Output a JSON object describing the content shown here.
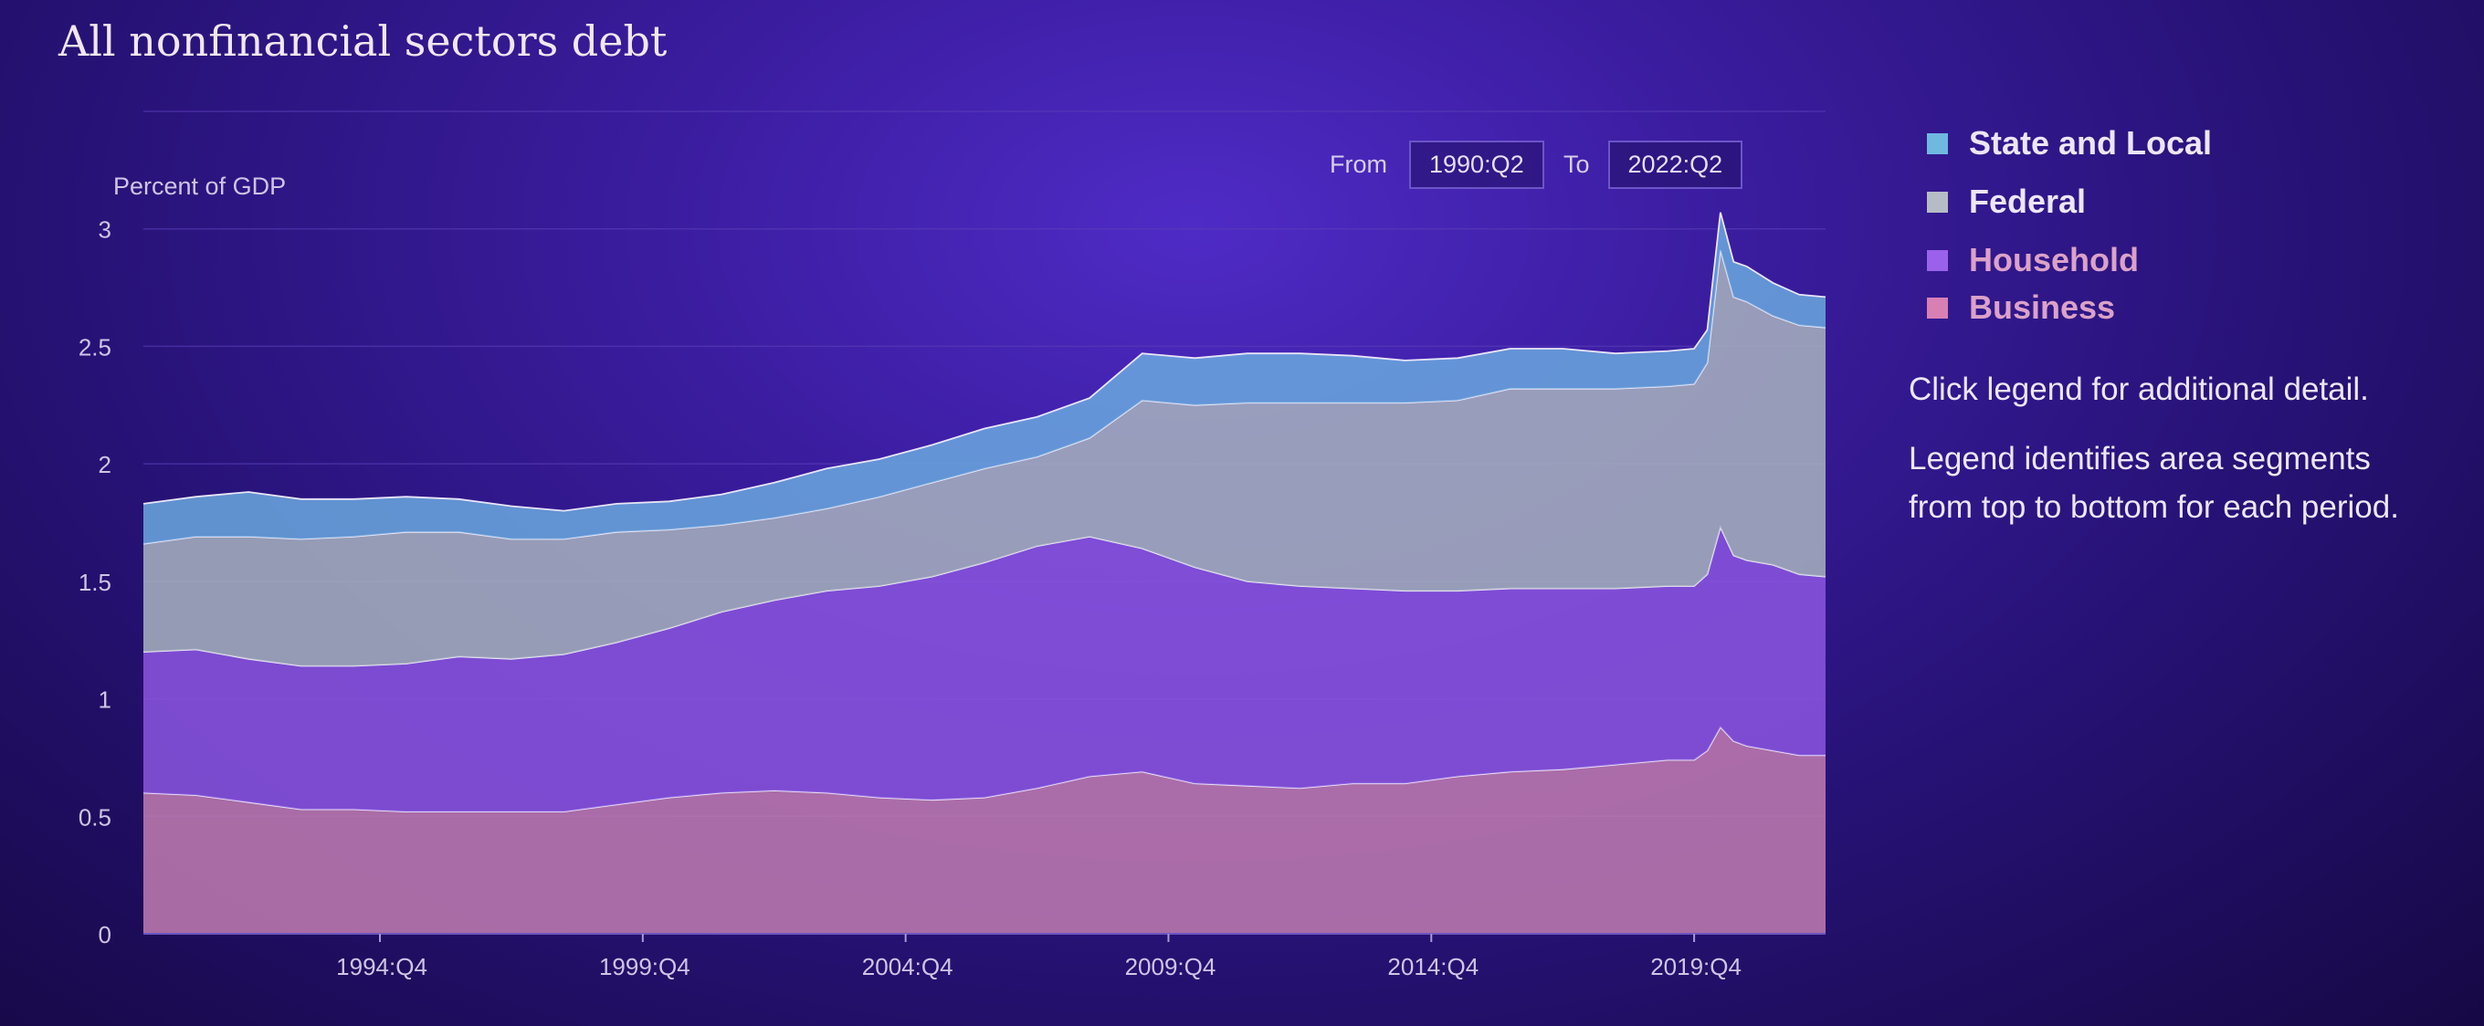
{
  "title": "All nonfinancial sectors debt",
  "range": {
    "from_label": "From",
    "from_value": "1990:Q2",
    "to_label": "To",
    "to_value": "2022:Q2"
  },
  "legend": [
    {
      "label": "State and Local",
      "color": "#6fb8e0",
      "text_color": "#ece6f6"
    },
    {
      "label": "Federal",
      "color": "#b6bcc6",
      "text_color": "#ece6f6"
    },
    {
      "label": "Household",
      "color": "#9a62ea",
      "text_color": "#dba2c8"
    },
    {
      "label": "Business",
      "color": "#d880b4",
      "text_color": "#dba2c8"
    }
  ],
  "notes": {
    "click": "Click legend for additional detail.",
    "identifies_line1": "Legend identifies area segments",
    "identifies_line2": "from top to bottom for each period."
  },
  "chart_data": {
    "type": "area",
    "stacked": true,
    "ylabel": "Percent of GDP",
    "ylim": [
      0,
      3.5
    ],
    "yticks": [
      0,
      0.5,
      1,
      1.5,
      2,
      2.5,
      3
    ],
    "ytick_labels": [
      "0",
      "0.5",
      "1",
      "1.5",
      "2",
      "2.5",
      "3"
    ],
    "xlim": [
      1990.25,
      2022.25
    ],
    "xticks": [
      "1994:Q4",
      "1999:Q4",
      "2004:Q4",
      "2009:Q4",
      "2014:Q4",
      "2019:Q4"
    ],
    "grid": true,
    "x": [
      "1990:Q2",
      "1991:Q2",
      "1992:Q2",
      "1993:Q2",
      "1994:Q2",
      "1995:Q2",
      "1996:Q2",
      "1997:Q2",
      "1998:Q2",
      "1999:Q2",
      "2000:Q2",
      "2001:Q2",
      "2002:Q2",
      "2003:Q2",
      "2004:Q2",
      "2005:Q2",
      "2006:Q2",
      "2007:Q2",
      "2008:Q2",
      "2009:Q2",
      "2010:Q2",
      "2011:Q2",
      "2012:Q2",
      "2013:Q2",
      "2014:Q2",
      "2015:Q2",
      "2016:Q2",
      "2017:Q2",
      "2018:Q2",
      "2019:Q2",
      "2019:Q4",
      "2020:Q1",
      "2020:Q2",
      "2020:Q3",
      "2020:Q4",
      "2021:Q2",
      "2021:Q4",
      "2022:Q2"
    ],
    "series": [
      {
        "name": "Business",
        "color": "#c07bb0",
        "values": [
          0.6,
          0.59,
          0.56,
          0.53,
          0.53,
          0.52,
          0.52,
          0.52,
          0.52,
          0.55,
          0.58,
          0.6,
          0.61,
          0.6,
          0.58,
          0.57,
          0.58,
          0.62,
          0.67,
          0.69,
          0.64,
          0.63,
          0.62,
          0.64,
          0.64,
          0.67,
          0.69,
          0.7,
          0.72,
          0.74,
          0.74,
          0.78,
          0.88,
          0.82,
          0.8,
          0.78,
          0.76,
          0.76
        ]
      },
      {
        "name": "Household",
        "color": "#8a55df",
        "values": [
          0.6,
          0.62,
          0.61,
          0.61,
          0.61,
          0.63,
          0.66,
          0.65,
          0.67,
          0.69,
          0.72,
          0.77,
          0.81,
          0.86,
          0.9,
          0.95,
          1.0,
          1.03,
          1.02,
          0.95,
          0.92,
          0.87,
          0.86,
          0.83,
          0.82,
          0.79,
          0.78,
          0.77,
          0.75,
          0.74,
          0.74,
          0.75,
          0.85,
          0.79,
          0.79,
          0.79,
          0.77,
          0.76
        ]
      },
      {
        "name": "Federal",
        "color": "#a8b2bf",
        "values": [
          0.46,
          0.48,
          0.52,
          0.54,
          0.55,
          0.56,
          0.53,
          0.51,
          0.49,
          0.47,
          0.42,
          0.37,
          0.35,
          0.35,
          0.38,
          0.4,
          0.4,
          0.38,
          0.42,
          0.63,
          0.69,
          0.76,
          0.78,
          0.79,
          0.8,
          0.81,
          0.85,
          0.85,
          0.85,
          0.85,
          0.86,
          0.9,
          1.18,
          1.1,
          1.1,
          1.06,
          1.06,
          1.06
        ]
      },
      {
        "name": "State and Local",
        "color": "#6aa8de",
        "values": [
          0.17,
          0.17,
          0.19,
          0.17,
          0.16,
          0.15,
          0.14,
          0.14,
          0.12,
          0.12,
          0.12,
          0.13,
          0.15,
          0.17,
          0.16,
          0.16,
          0.17,
          0.17,
          0.17,
          0.2,
          0.2,
          0.21,
          0.21,
          0.2,
          0.18,
          0.18,
          0.17,
          0.17,
          0.15,
          0.15,
          0.15,
          0.14,
          0.16,
          0.15,
          0.15,
          0.14,
          0.13,
          0.13
        ]
      }
    ]
  }
}
